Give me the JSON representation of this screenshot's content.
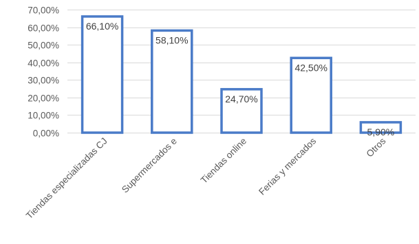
{
  "chart_data": {
    "type": "bar",
    "title": "",
    "xlabel": "",
    "ylabel": "",
    "categories": [
      "Tiendas especializadas CJ",
      "Supermercados e",
      "Tiendas online",
      "Ferias y mercados",
      "Otros"
    ],
    "values": [
      66.1,
      58.1,
      24.7,
      42.5,
      5.9
    ],
    "data_labels": [
      "66,10%",
      "58,10%",
      "24,70%",
      "42,50%",
      "5,90%"
    ],
    "ylim": [
      0,
      70
    ],
    "yticks": [
      0,
      10,
      20,
      30,
      40,
      50,
      60,
      70
    ],
    "ytick_labels": [
      "0,00%",
      "10,00%",
      "20,00%",
      "30,00%",
      "40,00%",
      "50,00%",
      "60,00%",
      "70,00%"
    ],
    "grid": true,
    "legend": "none",
    "bar_style": "outline",
    "colors": {
      "bar_outline": "#4a7bc8",
      "bar_fill": "#ffffff",
      "grid": "#d9d9d9",
      "axis": "#d9d9d9",
      "text": "#595959"
    }
  }
}
